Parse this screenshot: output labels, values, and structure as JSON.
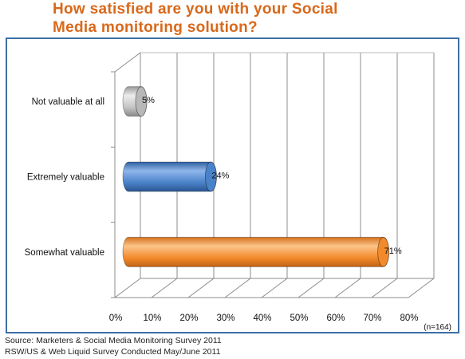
{
  "title_line1": "How satisfied are you with your Social",
  "title_line2": "Media monitoring solution?",
  "chart_data": {
    "type": "bar",
    "orientation": "horizontal",
    "style": "3d-cylinder",
    "categories": [
      "Not valuable at all",
      "Extremely valuable",
      "Somewhat valuable"
    ],
    "values": [
      5,
      24,
      71
    ],
    "value_labels": [
      "5%",
      "24%",
      "71%"
    ],
    "colors": [
      "#b8b8b8",
      "#4a82c9",
      "#f28a2c"
    ],
    "xlim": [
      0,
      80
    ],
    "xticks": [
      "0%",
      "10%",
      "20%",
      "30%",
      "40%",
      "50%",
      "60%",
      "70%",
      "80%"
    ],
    "grid": true,
    "note": "(n=164)"
  },
  "footer": {
    "line1": "Source: Marketers & Social Media Monitoring Survey 2011",
    "line2": "RSW/US & Web Liquid Survey Conducted May/June 2011"
  }
}
